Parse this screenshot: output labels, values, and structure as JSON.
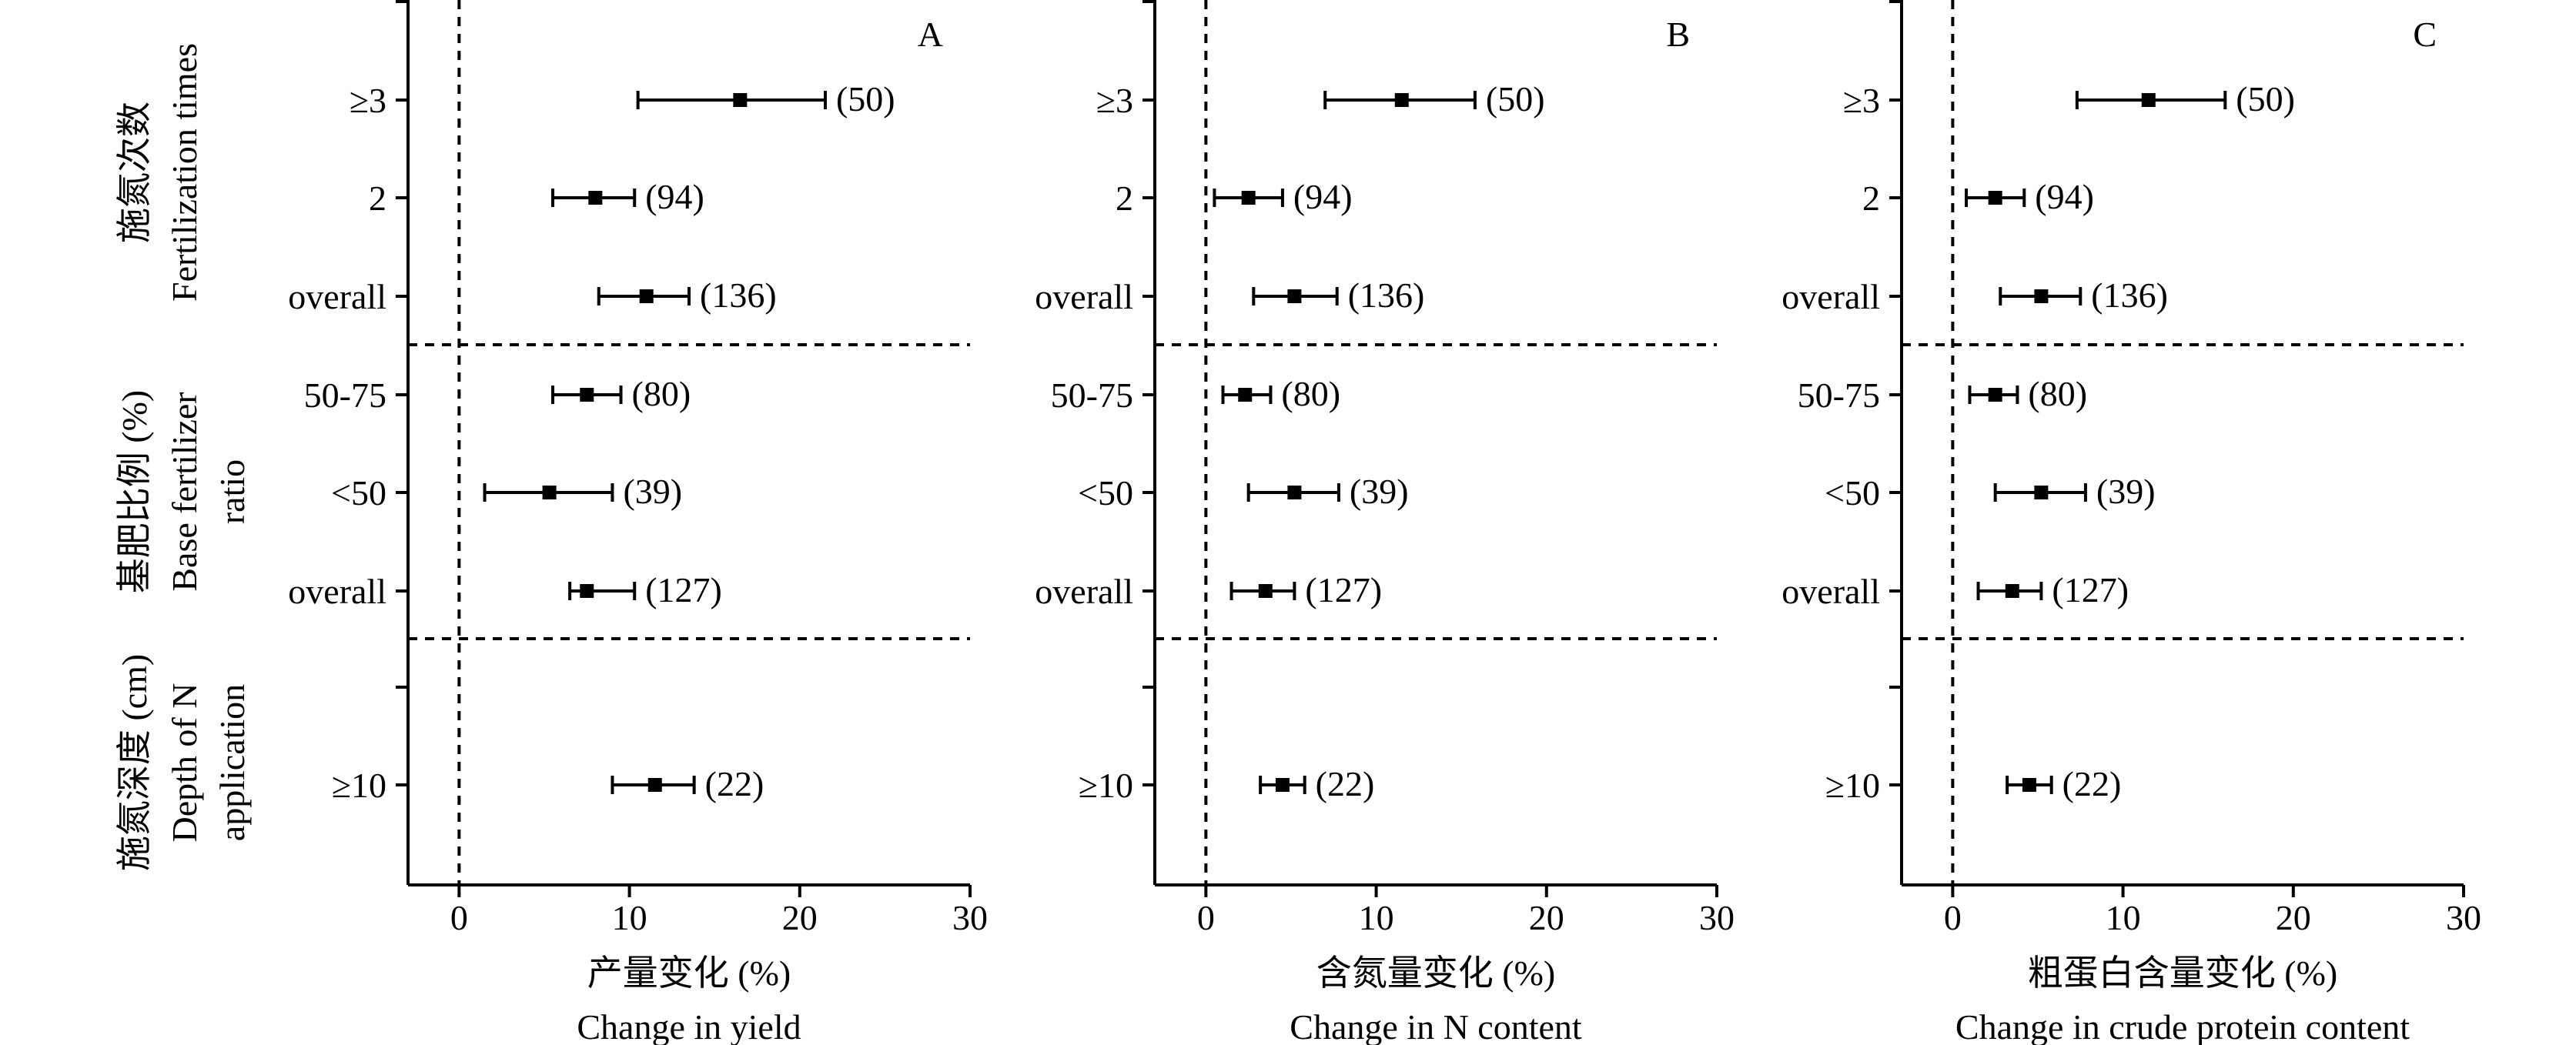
{
  "chart_data": [
    {
      "type": "forest",
      "panel_label": "A",
      "xlabel_cn": "产量变化 (%)",
      "xlabel_en": "Change in yield",
      "xlim": [
        -3,
        30
      ],
      "xticks": [
        0,
        10,
        20,
        30
      ],
      "series": [
        {
          "category": "≥3",
          "mean": 16.5,
          "lo": 10.5,
          "hi": 21.5,
          "n": "(50)"
        },
        {
          "category": "2",
          "mean": 8.0,
          "lo": 5.5,
          "hi": 10.3,
          "n": "(94)"
        },
        {
          "category": "overall",
          "mean": 11.0,
          "lo": 8.2,
          "hi": 13.5,
          "n": "(136)"
        },
        {
          "category": "50-75",
          "mean": 7.5,
          "lo": 5.5,
          "hi": 9.5,
          "n": "(80)"
        },
        {
          "category": "<50",
          "mean": 5.3,
          "lo": 1.5,
          "hi": 9.0,
          "n": "(39)"
        },
        {
          "category": "overall",
          "mean": 7.5,
          "lo": 6.5,
          "hi": 10.3,
          "n": "(127)"
        },
        {
          "category": "≥10",
          "mean": 11.5,
          "lo": 9.0,
          "hi": 13.8,
          "n": "(22)"
        }
      ]
    },
    {
      "type": "forest",
      "panel_label": "B",
      "xlabel_cn": "含氮量变化 (%)",
      "xlabel_en": "Change in N content",
      "xlim": [
        -3,
        30
      ],
      "xticks": [
        0,
        10,
        20,
        30
      ],
      "series": [
        {
          "category": "≥3",
          "mean": 11.5,
          "lo": 7.0,
          "hi": 15.8,
          "n": "(50)"
        },
        {
          "category": "2",
          "mean": 2.5,
          "lo": 0.5,
          "hi": 4.5,
          "n": "(94)"
        },
        {
          "category": "overall",
          "mean": 5.2,
          "lo": 2.8,
          "hi": 7.7,
          "n": "(136)"
        },
        {
          "category": "50-75",
          "mean": 2.3,
          "lo": 1.0,
          "hi": 3.8,
          "n": "(80)"
        },
        {
          "category": "<50",
          "mean": 5.2,
          "lo": 2.5,
          "hi": 7.8,
          "n": "(39)"
        },
        {
          "category": "overall",
          "mean": 3.5,
          "lo": 1.5,
          "hi": 5.2,
          "n": "(127)"
        },
        {
          "category": "≥10",
          "mean": 4.5,
          "lo": 3.2,
          "hi": 5.8,
          "n": "(22)"
        }
      ]
    },
    {
      "type": "forest",
      "panel_label": "C",
      "xlabel_cn": "粗蛋白含量变化 (%)",
      "xlabel_en": "Change in crude protein content",
      "xlim": [
        -3,
        30
      ],
      "xticks": [
        0,
        10,
        20,
        30
      ],
      "series": [
        {
          "category": "≥3",
          "mean": 11.5,
          "lo": 7.3,
          "hi": 16.0,
          "n": "(50)"
        },
        {
          "category": "2",
          "mean": 2.5,
          "lo": 0.8,
          "hi": 4.2,
          "n": "(94)"
        },
        {
          "category": "overall",
          "mean": 5.2,
          "lo": 2.8,
          "hi": 7.5,
          "n": "(136)"
        },
        {
          "category": "50-75",
          "mean": 2.5,
          "lo": 1.0,
          "hi": 3.8,
          "n": "(80)"
        },
        {
          "category": "<50",
          "mean": 5.2,
          "lo": 2.5,
          "hi": 7.8,
          "n": "(39)"
        },
        {
          "category": "overall",
          "mean": 3.5,
          "lo": 1.5,
          "hi": 5.2,
          "n": "(127)"
        },
        {
          "category": "≥10",
          "mean": 4.5,
          "lo": 3.2,
          "hi": 5.8,
          "n": "(22)"
        }
      ]
    }
  ],
  "group_labels": [
    {
      "cn": "施氮次数",
      "en": [
        "Fertilization times"
      ]
    },
    {
      "cn": "基肥比例 (%)",
      "en": [
        "Base fertilizer",
        "ratio"
      ]
    },
    {
      "cn": "施氮深度 (cm)",
      "en": [
        "Depth of N",
        "application"
      ]
    }
  ]
}
